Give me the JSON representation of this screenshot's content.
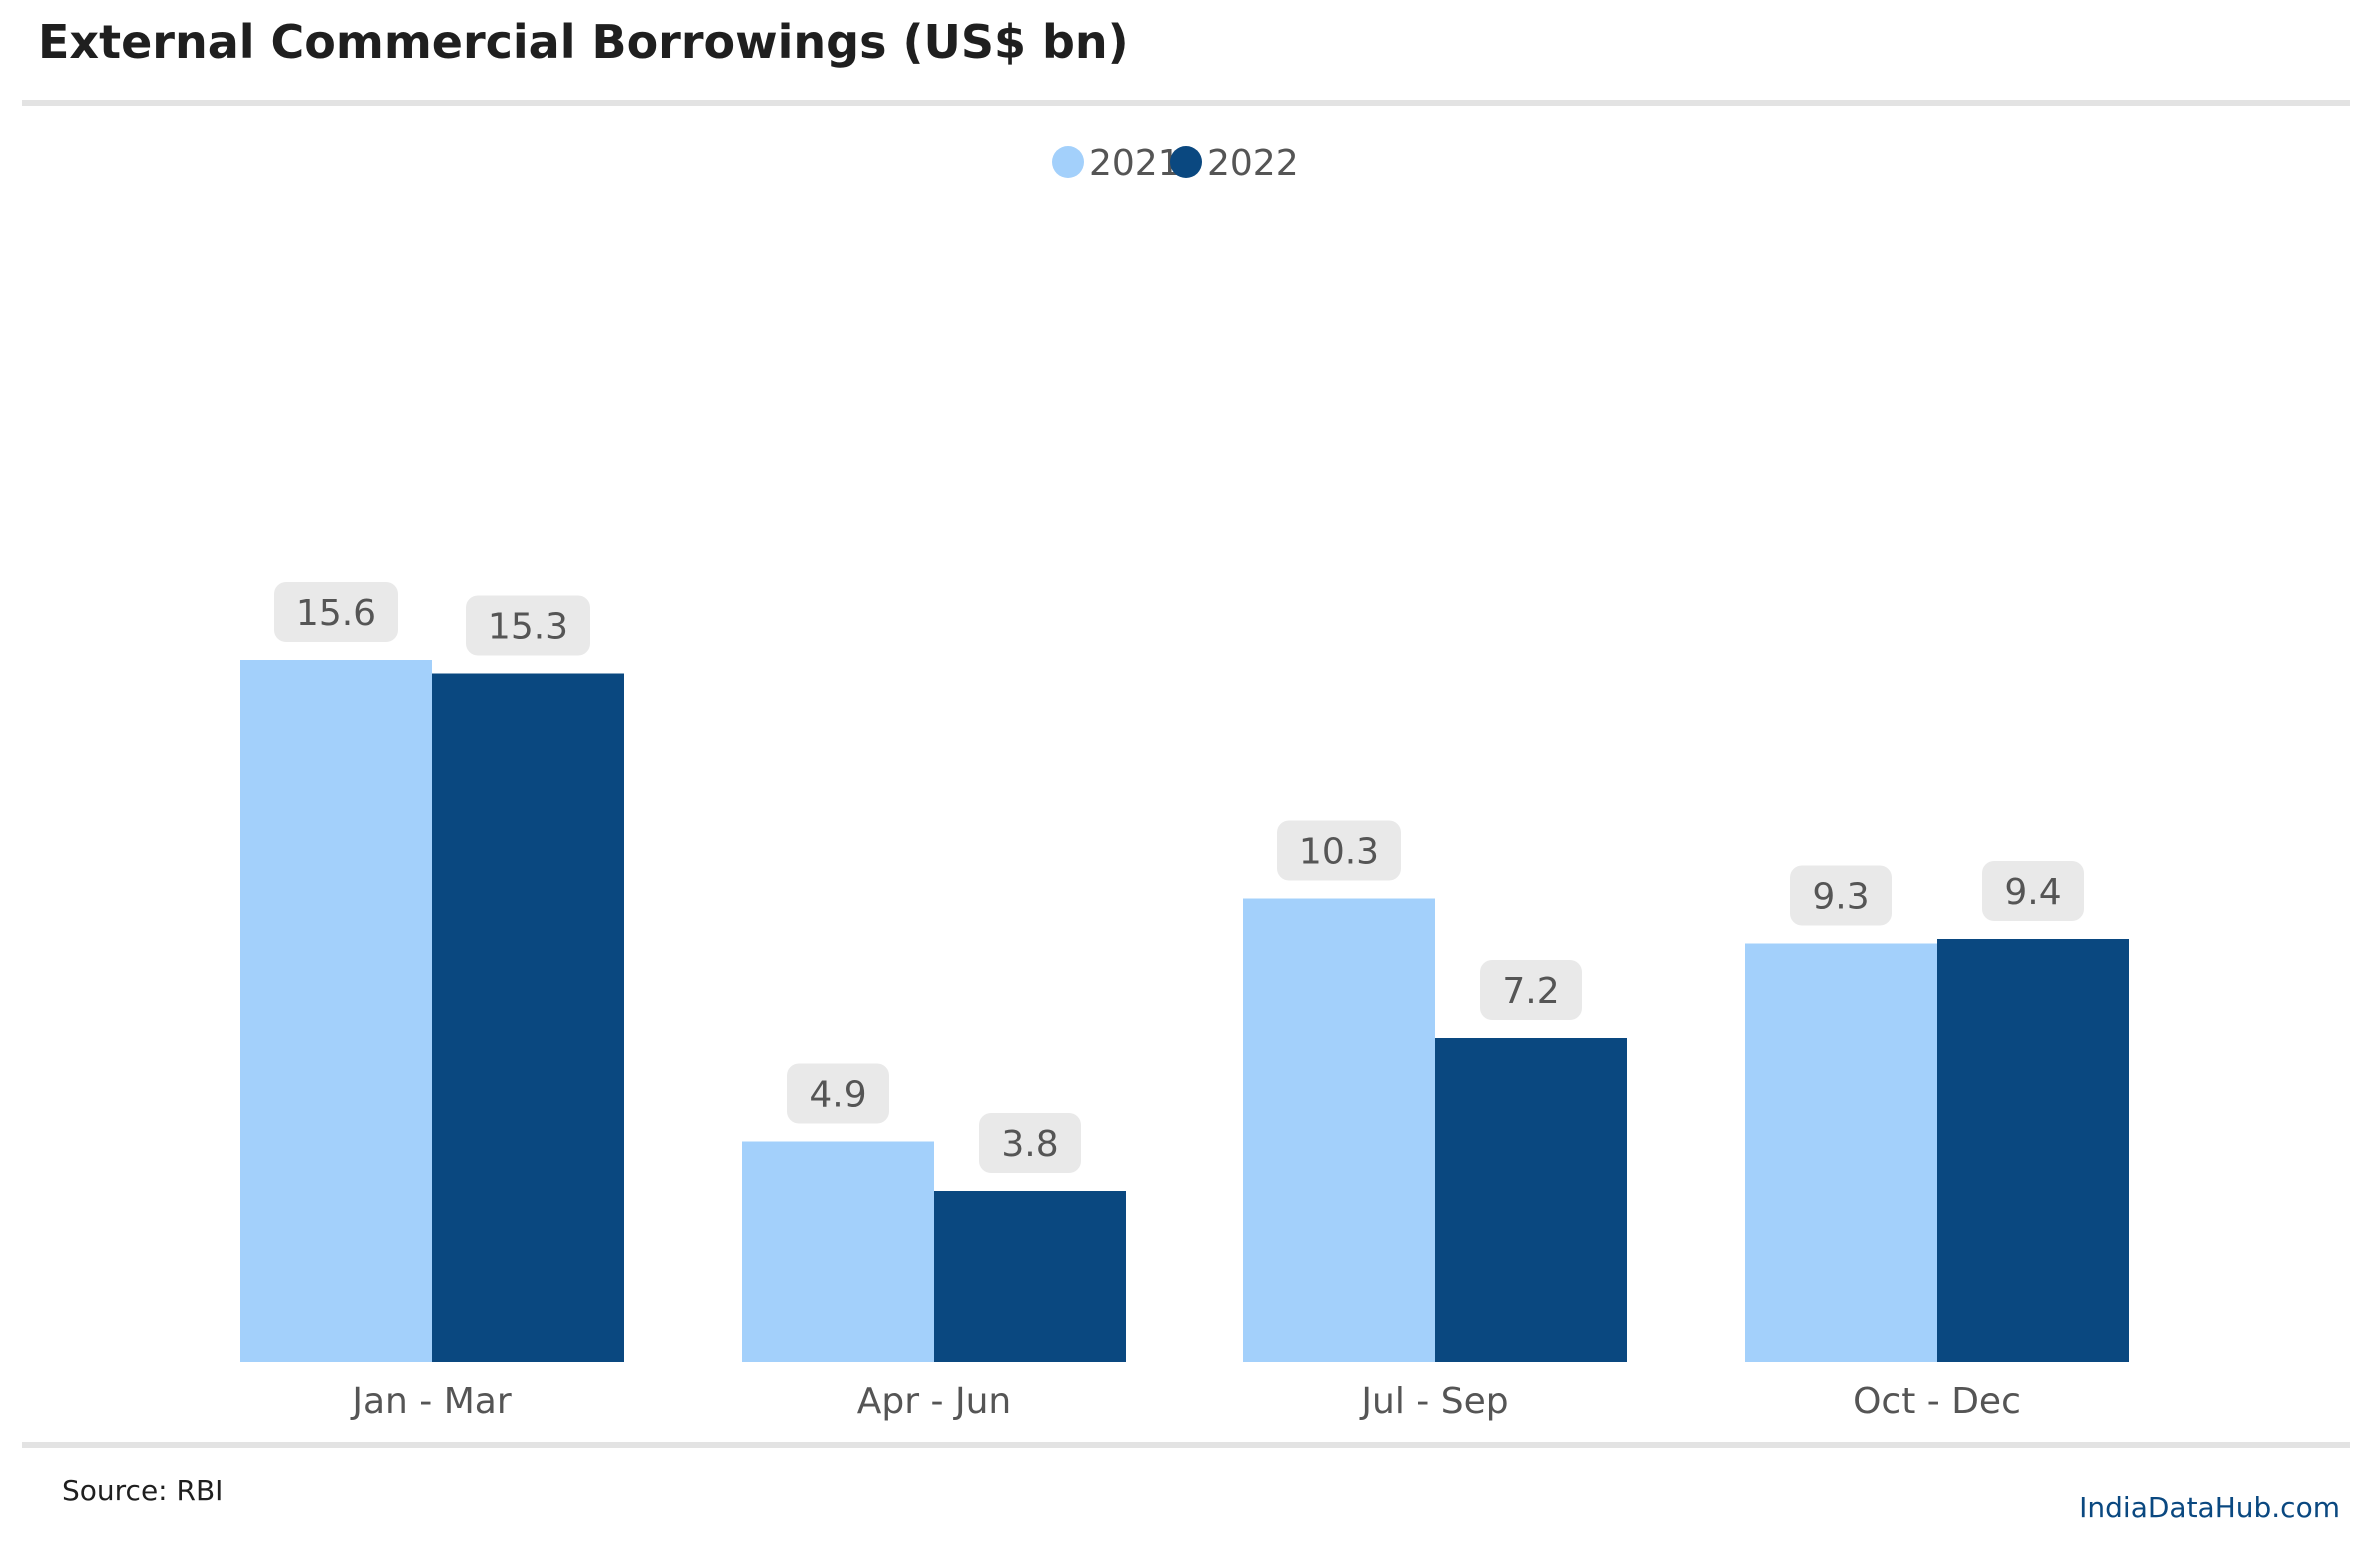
{
  "chart_data": {
    "type": "bar",
    "title": "External Commercial Borrowings (US$ bn)",
    "categories": [
      "Jan - Mar",
      "Apr - Jun",
      "Jul - Sep",
      "Oct - Dec"
    ],
    "series": [
      {
        "name": "2021",
        "color": "#a3d0fb",
        "values": [
          15.6,
          4.9,
          10.3,
          9.3
        ]
      },
      {
        "name": "2022",
        "color": "#0a4880",
        "values": [
          15.3,
          3.8,
          7.2,
          9.4
        ]
      }
    ],
    "data_labels": [
      [
        "15.6",
        "4.9",
        "10.3",
        "9.3"
      ],
      [
        "15.3",
        "3.8",
        "7.2",
        "9.4"
      ]
    ],
    "ylim": [
      0,
      17
    ],
    "xlabel": "",
    "ylabel": "",
    "legend": "top-center",
    "grid": false
  },
  "footer": {
    "source": "Source: RBI",
    "brand": "IndiaDataHub.com"
  },
  "colors": {
    "title": "#1f1f1f",
    "text": "#555555",
    "divider": "#e3e3e3",
    "label_bg": "#e9e9e9",
    "brand": "#0a4880"
  }
}
